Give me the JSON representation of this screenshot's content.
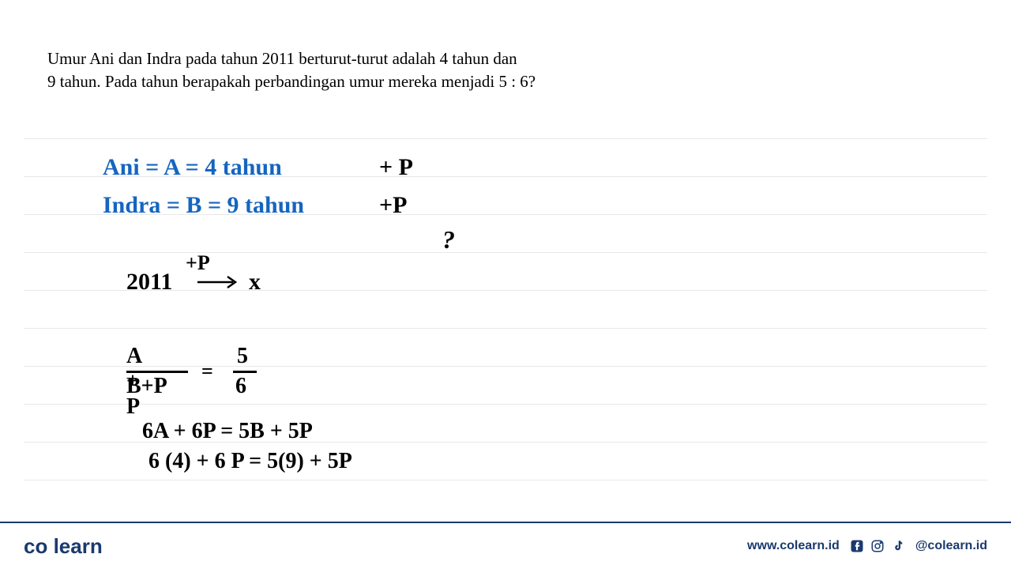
{
  "question": {
    "line1": "Umur Ani dan Indra pada tahun 2011 berturut-turut adalah 4 tahun dan",
    "line2": "9 tahun. Pada tahun berapakah perbandingan umur mereka menjadi 5 : 6?"
  },
  "handwriting": {
    "ani_eq": "Ani =  A =   4  tahun",
    "ani_plus": "+ P",
    "indra_eq": "Indra  =  B =   9 tahun",
    "indra_plus": "+P",
    "question_mark": "?",
    "tp_label": "+P",
    "year": "2011",
    "x_var": "x",
    "frac_num1": "A + P",
    "frac_den1": "B+P",
    "frac_eq": "=",
    "frac_num2": "5",
    "frac_den2": "6",
    "expand1": "6A + 6P  =  5B + 5P",
    "expand2": "6 (4) + 6 P = 5(9) + 5P"
  },
  "colors": {
    "blue": "#1565c0",
    "black": "#000000",
    "rule": "#e8e8e8",
    "brand": "#1a3a6e",
    "accent": "#2bb5e8"
  },
  "ruled_lines": [
    0,
    48,
    96,
    144,
    192,
    240,
    288,
    336,
    384,
    432
  ],
  "footer": {
    "logo_co": "co",
    "logo_learn": "learn",
    "url": "www.colearn.id",
    "handle": "@colearn.id"
  }
}
